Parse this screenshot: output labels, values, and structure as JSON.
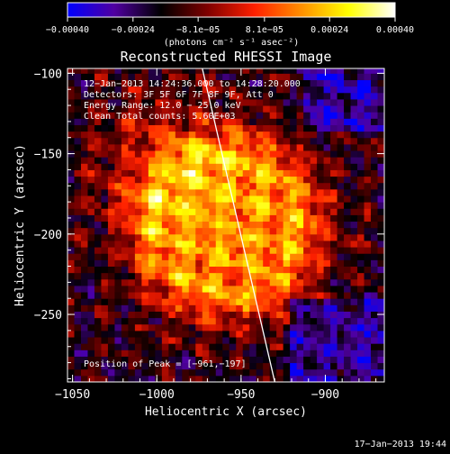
{
  "chart_data": {
    "type": "heatmap",
    "title": "Reconstructed RHESSI Image",
    "xlabel": "Heliocentric X (arcsec)",
    "ylabel": "Heliocentric Y (arcsec)",
    "xlim": [
      -1053,
      -865
    ],
    "ylim": [
      -292,
      -97
    ],
    "x_ticks": [
      -1050,
      -1000,
      -950,
      -900
    ],
    "x_tick_labels": [
      "−1050",
      "−1000",
      "−950",
      "−900"
    ],
    "y_ticks": [
      -100,
      -150,
      -200,
      -250
    ],
    "y_tick_labels": [
      "−100",
      "−150",
      "−200",
      "−250"
    ],
    "colorbar": {
      "range": [
        -0.0004,
        0.0004
      ],
      "tick_values": [
        -0.0004,
        -0.00024,
        -8.1e-05,
        8.1e-05,
        0.00024,
        0.0004
      ],
      "tick_labels": [
        "−0.00040",
        "−0.00024",
        "−8.1e−05",
        "8.1e−05",
        "0.00024",
        "0.00040"
      ],
      "units_label": "(photons cm⁻² s⁻¹ asec⁻²)",
      "colors": [
        "#0000ff",
        "#5000a0",
        "#000000",
        "#800000",
        "#ff2000",
        "#ff9000",
        "#ffff00",
        "#ffffff"
      ]
    },
    "annotations": [
      "12−Jan−2013 14:24:36.000 to 14:28:20.000",
      "Detectors: 3F 5F 6F 7F 8F 9F, Att 0",
      "Energy Range: 12.0 − 25.0 keV",
      "Clean     Total counts: 5.60E+03"
    ],
    "peak_label": "Position of Peak = [−961,−197]",
    "peak": {
      "x": -961,
      "y": -197
    },
    "limb_line": {
      "x": [
        -973,
        -930
      ],
      "y": [
        -97,
        -292
      ]
    },
    "grid": false,
    "map_description": "flare source centred near peak; bright emission ring around (-960,-200) fading outward to negative (purple) background"
  },
  "footer": {
    "timestamp": "17−Jan−2013 19:44"
  }
}
